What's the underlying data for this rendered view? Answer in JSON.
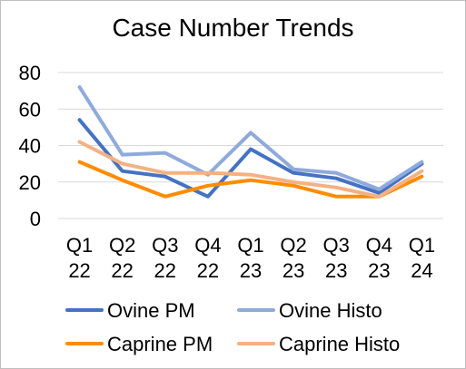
{
  "chart_data": {
    "type": "line",
    "title": "Case Number Trends",
    "xlabel": "",
    "ylabel": "",
    "categories": [
      [
        "Q1",
        "22"
      ],
      [
        "Q2",
        "22"
      ],
      [
        "Q3",
        "22"
      ],
      [
        "Q4",
        "22"
      ],
      [
        "Q1",
        "23"
      ],
      [
        "Q2",
        "23"
      ],
      [
        "Q3",
        "23"
      ],
      [
        "Q4",
        "23"
      ],
      [
        "Q1",
        "24"
      ]
    ],
    "ylim": [
      0,
      80
    ],
    "yticks": [
      "0",
      "20",
      "40",
      "60",
      "80"
    ],
    "grid": true,
    "legend_position": "bottom",
    "series": [
      {
        "name": "Ovine PM",
        "color": "#4472c4",
        "values": [
          54,
          26,
          23,
          12,
          38,
          25,
          22,
          14,
          30
        ]
      },
      {
        "name": "Ovine Histo",
        "color": "#8faadc",
        "values": [
          72,
          35,
          36,
          24,
          47,
          27,
          25,
          16,
          31
        ]
      },
      {
        "name": "Caprine PM",
        "color": "#ff8c00",
        "values": [
          31,
          21,
          12,
          18,
          21,
          18,
          12,
          12,
          23
        ]
      },
      {
        "name": "Caprine Histo",
        "color": "#f4b183",
        "values": [
          42,
          30,
          25,
          25,
          24,
          20,
          17,
          12,
          26
        ]
      }
    ]
  }
}
